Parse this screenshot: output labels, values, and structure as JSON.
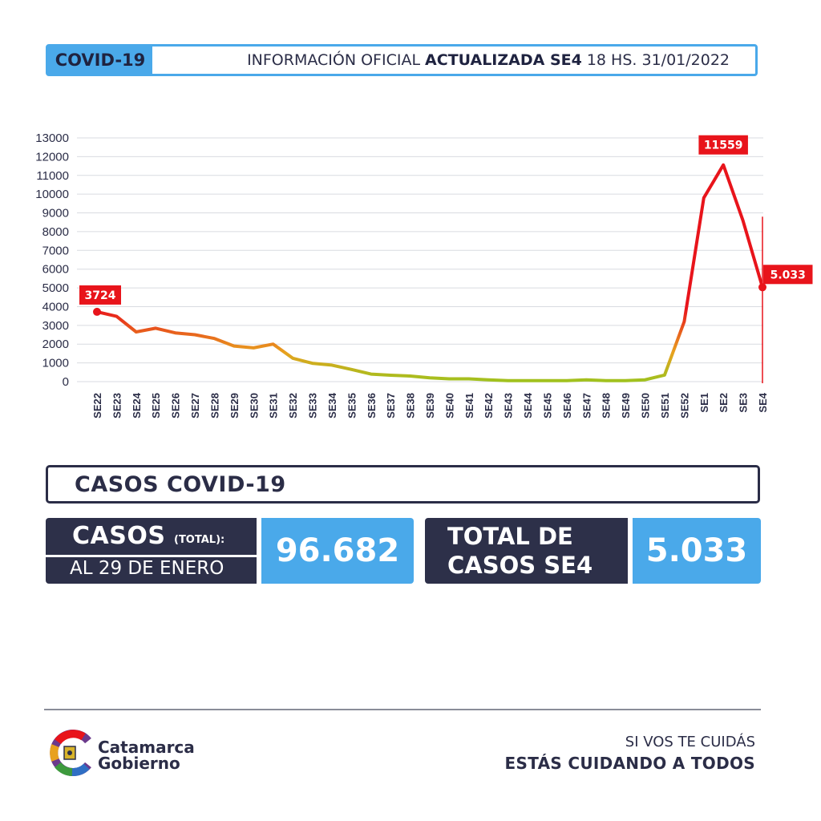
{
  "header": {
    "badge": "COVID-19",
    "info_prefix": "INFORMACIÓN OFICIAL",
    "info_bold": "ACTUALIZADA SE4",
    "info_suffix": "18 HS. 31/01/2022"
  },
  "chart_data": {
    "type": "line",
    "title": "",
    "xlabel": "",
    "ylabel": "",
    "ylim": [
      0,
      13000
    ],
    "yticks": [
      0,
      1000,
      2000,
      3000,
      4000,
      5000,
      6000,
      7000,
      8000,
      9000,
      10000,
      11000,
      12000,
      13000
    ],
    "grid": true,
    "categories": [
      "SE22",
      "SE23",
      "SE24",
      "SE25",
      "SE26",
      "SE27",
      "SE28",
      "SE29",
      "SE30",
      "SE31",
      "SE32",
      "SE33",
      "SE34",
      "SE35",
      "SE36",
      "SE37",
      "SE38",
      "SE39",
      "SE40",
      "SE41",
      "SE42",
      "SE43",
      "SE44",
      "SE45",
      "SE46",
      "SE47",
      "SE48",
      "SE49",
      "SE50",
      "SE51",
      "SE52",
      "SE1",
      "SE2",
      "SE3",
      "SE4"
    ],
    "series": [
      {
        "values": [
          3724,
          3480,
          2650,
          2850,
          2600,
          2500,
          2300,
          1900,
          1800,
          2000,
          1250,
          980,
          880,
          650,
          400,
          340,
          300,
          200,
          150,
          150,
          100,
          50,
          50,
          50,
          50,
          100,
          50,
          50,
          100,
          350,
          3200,
          9800,
          11559,
          8600,
          5033
        ]
      }
    ],
    "annotations": [
      {
        "category": "SE22",
        "label": "3724"
      },
      {
        "category": "SE2",
        "label": "11559"
      },
      {
        "category": "SE4",
        "label": "5.033"
      }
    ],
    "colors": {
      "high": "#e8141b",
      "mid": "#e8a11f",
      "low": "#9fc21e"
    }
  },
  "section": {
    "title": "CASOS COVID-19"
  },
  "stats": {
    "total_label": "CASOS",
    "total_sublabel": "(TOTAL):",
    "total_date": "AL 29 DE ENERO",
    "total_value": "96.682",
    "week_label_1": "TOTAL DE",
    "week_label_2": "CASOS SE4",
    "week_value": "5.033"
  },
  "footer": {
    "logo_line1": "Catamarca",
    "logo_line2": "Gobierno",
    "slogan_1": "SI VOS TE CUIDÁS",
    "slogan_2": "ESTÁS CUIDANDO A TODOS"
  },
  "colors": {
    "navy": "#2d3049",
    "blue": "#4aa9ea",
    "red": "#e8141b"
  }
}
